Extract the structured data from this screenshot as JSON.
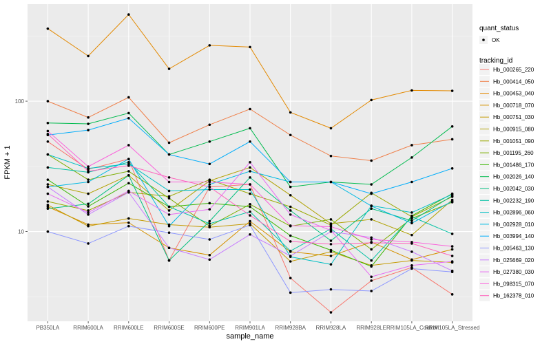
{
  "chart_data": {
    "type": "line",
    "xlabel": "sample_name",
    "ylabel": "FPKM + 1",
    "y_scale": "log10",
    "ylim": [
      2.05,
      555
    ],
    "y_ticks": [
      {
        "value": 10,
        "label": "10"
      },
      {
        "value": 100,
        "label": "100"
      }
    ],
    "grid": true,
    "categories": [
      "PB350LA",
      "RRIM600LA",
      "RRIM600LE",
      "RRIM600SE",
      "RRIM600PE",
      "RRIM901LA",
      "RRIM928BA",
      "RRIM928LA",
      "RRIM928LE",
      "RRIM105LA_Control",
      "RRIM105LA_Stressed"
    ],
    "series": [
      {
        "name": "Hb_000265_220",
        "color": "#F8766D",
        "values": [
          49,
          30,
          36,
          6.0,
          22,
          23,
          4.4,
          2.4,
          4.2,
          5.3,
          3.3
        ]
      },
      {
        "name": "Hb_000414_050",
        "color": "#EF7F49",
        "values": [
          100,
          75,
          107,
          48,
          66,
          87,
          55,
          38,
          35,
          46,
          51
        ]
      },
      {
        "name": "Hb_000453_040",
        "color": "#E38900",
        "values": [
          360,
          222,
          462,
          177,
          268,
          260,
          82,
          62,
          102,
          121,
          120
        ]
      },
      {
        "name": "Hb_000718_070",
        "color": "#D59100",
        "values": [
          15.5,
          11.3,
          11.7,
          7.5,
          6.6,
          12.0,
          7.0,
          6.5,
          8.3,
          6.1,
          7.3
        ]
      },
      {
        "name": "Hb_000751_030",
        "color": "#C49A00",
        "values": [
          16.0,
          11.0,
          12.6,
          11.3,
          10.8,
          11.5,
          5.9,
          7.0,
          5.5,
          6.0,
          5.8
        ]
      },
      {
        "name": "Hb_000915_080",
        "color": "#B0A100",
        "values": [
          23,
          19.5,
          27,
          14.5,
          24.5,
          31,
          19.0,
          11.5,
          12.4,
          9.4,
          17.5
        ]
      },
      {
        "name": "Hb_001051_090",
        "color": "#99A800",
        "values": [
          17,
          14.5,
          20,
          18.6,
          25,
          19.5,
          15.5,
          11.2,
          19.8,
          13.0,
          18.5
        ]
      },
      {
        "name": "Hb_001195_260",
        "color": "#7CAE00",
        "values": [
          39,
          25,
          29,
          18,
          11,
          16.2,
          11.0,
          12.4,
          7.3,
          12.6,
          16.8
        ]
      },
      {
        "name": "Hb_001486_170",
        "color": "#39B600",
        "values": [
          25,
          15.6,
          23.5,
          15.5,
          16.5,
          15.5,
          9.3,
          7.2,
          5.4,
          13.2,
          19.5
        ]
      },
      {
        "name": "Hb_002026_140",
        "color": "#00BB4E",
        "values": [
          68,
          67,
          81,
          39,
          49,
          62,
          22,
          24,
          23,
          37,
          64
        ]
      },
      {
        "name": "Hb_002042_030",
        "color": "#00BF7D",
        "values": [
          15.0,
          16.3,
          27,
          6.0,
          12.0,
          26,
          14.5,
          8.5,
          15.0,
          12.1,
          18.8
        ]
      },
      {
        "name": "Hb_002232_190",
        "color": "#00C1A3",
        "values": [
          31,
          28.5,
          34,
          15.5,
          11.5,
          14.2,
          7.1,
          10.5,
          6.0,
          13.0,
          9.6
        ]
      },
      {
        "name": "Hb_002896_060",
        "color": "#00BFC4",
        "values": [
          39,
          30.5,
          33,
          20.5,
          21,
          21,
          6.4,
          5.6,
          15.8,
          14.0,
          19.3
        ]
      },
      {
        "name": "Hb_002928_010",
        "color": "#00B9E3",
        "values": [
          22,
          24,
          36,
          11.0,
          23,
          29,
          24,
          24,
          15.7,
          11.6,
          17.1
        ]
      },
      {
        "name": "Hb_003994_140",
        "color": "#00ADFA",
        "values": [
          55,
          60,
          74,
          39,
          33,
          49,
          24,
          24,
          19.5,
          24,
          30.5
        ]
      },
      {
        "name": "Hb_005463_130",
        "color": "#8D97FF",
        "values": [
          10.0,
          8.1,
          11.0,
          9.8,
          8.7,
          11.2,
          3.4,
          3.6,
          3.5,
          5.2,
          4.9
        ]
      },
      {
        "name": "Hb_025669_020",
        "color": "#C77CFF",
        "values": [
          22,
          13.5,
          20,
          7.5,
          6.1,
          9.5,
          6.5,
          10.0,
          9.0,
          7.0,
          5.0
        ]
      },
      {
        "name": "Hb_027380_030",
        "color": "#E76BF3",
        "values": [
          19.5,
          14.0,
          20.5,
          13.5,
          14.8,
          34,
          13.5,
          10.2,
          4.5,
          5.5,
          5.9
        ]
      },
      {
        "name": "Hb_098315_070",
        "color": "#FA62DB",
        "values": [
          59,
          31.5,
          46,
          24,
          24,
          23,
          11.1,
          10.9,
          8.7,
          8.3,
          7.7
        ]
      },
      {
        "name": "Hb_162378_010",
        "color": "#FF62BC",
        "values": [
          56,
          29,
          32,
          26,
          22,
          13.3,
          8.4,
          8.0,
          8.2,
          8.1,
          6.5
        ]
      }
    ],
    "legend": {
      "placement": "right",
      "quant_title": "quant_status",
      "quant_items": [
        "OK"
      ],
      "title": "tracking_id"
    }
  }
}
